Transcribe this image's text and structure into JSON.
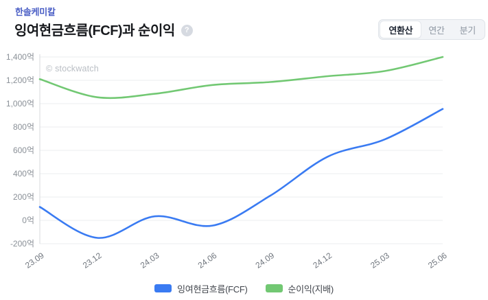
{
  "header": {
    "company": "한솔케미칼",
    "title": "잉여현금흐름(FCF)과 순이익",
    "help_icon": "?"
  },
  "period_tabs": [
    {
      "label": "연환산",
      "selected": true
    },
    {
      "label": "연간",
      "selected": false
    },
    {
      "label": "분기",
      "selected": false
    }
  ],
  "watermark": "© stockwatch",
  "colors": {
    "fcf_line": "#3A7BF2",
    "net_income_line": "#72C873",
    "company_accent": "#4A5EC5"
  },
  "chart_data": {
    "type": "line",
    "curve": "smooth",
    "unit": "억",
    "x": [
      "23.09",
      "23.12",
      "24.03",
      "24.06",
      "24.09",
      "24.12",
      "25.03",
      "25.06"
    ],
    "series": [
      {
        "name": "잉여현금흐름(FCF)",
        "color": "#3A7BF2",
        "values": [
          115,
          -150,
          35,
          -45,
          210,
          545,
          695,
          955
        ]
      },
      {
        "name": "순이익(지배)",
        "color": "#72C873",
        "values": [
          1210,
          1055,
          1085,
          1160,
          1185,
          1235,
          1280,
          1400
        ]
      }
    ],
    "ylim": [
      -200,
      1400
    ],
    "ytick_step": 200,
    "ytick_labels": [
      "1,400억",
      "1,200억",
      "1,000억",
      "800억",
      "600억",
      "400억",
      "200억",
      "0억",
      "-200억"
    ],
    "grid": true,
    "legend_position": "bottom"
  }
}
